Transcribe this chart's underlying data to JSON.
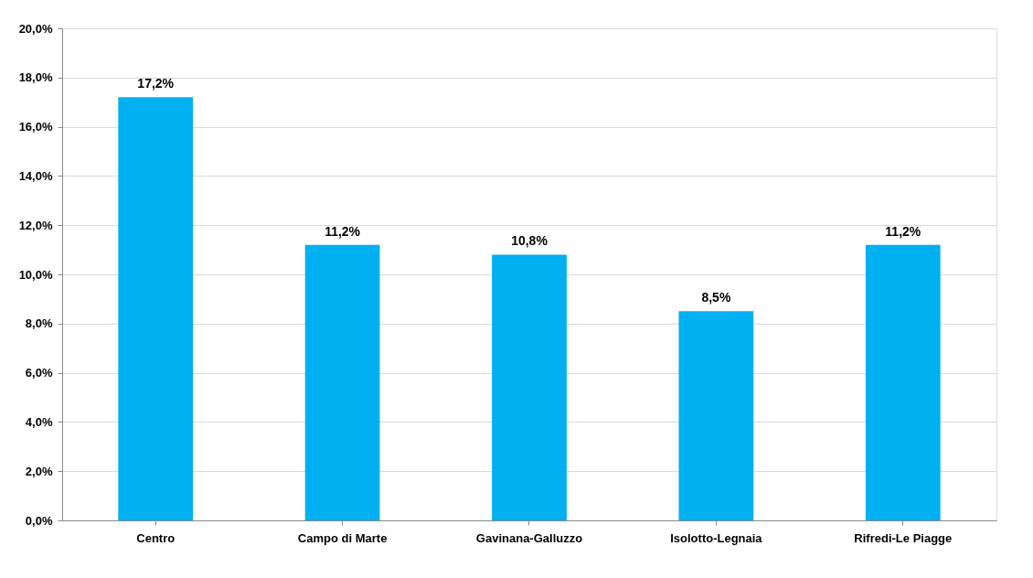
{
  "chart_data": {
    "type": "bar",
    "categories": [
      "Centro",
      "Campo di Marte",
      "Gavinana-Galluzzo",
      "Isolotto-Legnaia",
      "Rifredi-Le Piagge"
    ],
    "values": [
      17.2,
      11.2,
      10.8,
      8.5,
      11.2
    ],
    "value_labels": [
      "17,2%",
      "11,2%",
      "10,8%",
      "8,5%",
      "11,2%"
    ],
    "color": "#00b0f0",
    "ylim": [
      0,
      20
    ],
    "yticks": [
      {
        "value": 0,
        "label": "0,0%"
      },
      {
        "value": 2,
        "label": "2,0%"
      },
      {
        "value": 4,
        "label": "4,0%"
      },
      {
        "value": 6,
        "label": "6,0%"
      },
      {
        "value": 8,
        "label": "8,0%"
      },
      {
        "value": 10,
        "label": "10,0%"
      },
      {
        "value": 12,
        "label": "12,0%"
      },
      {
        "value": 14,
        "label": "14,0%"
      },
      {
        "value": 16,
        "label": "16,0%"
      },
      {
        "value": 18,
        "label": "18,0%"
      },
      {
        "value": 20,
        "label": "20,0%"
      }
    ],
    "grid": "y"
  }
}
